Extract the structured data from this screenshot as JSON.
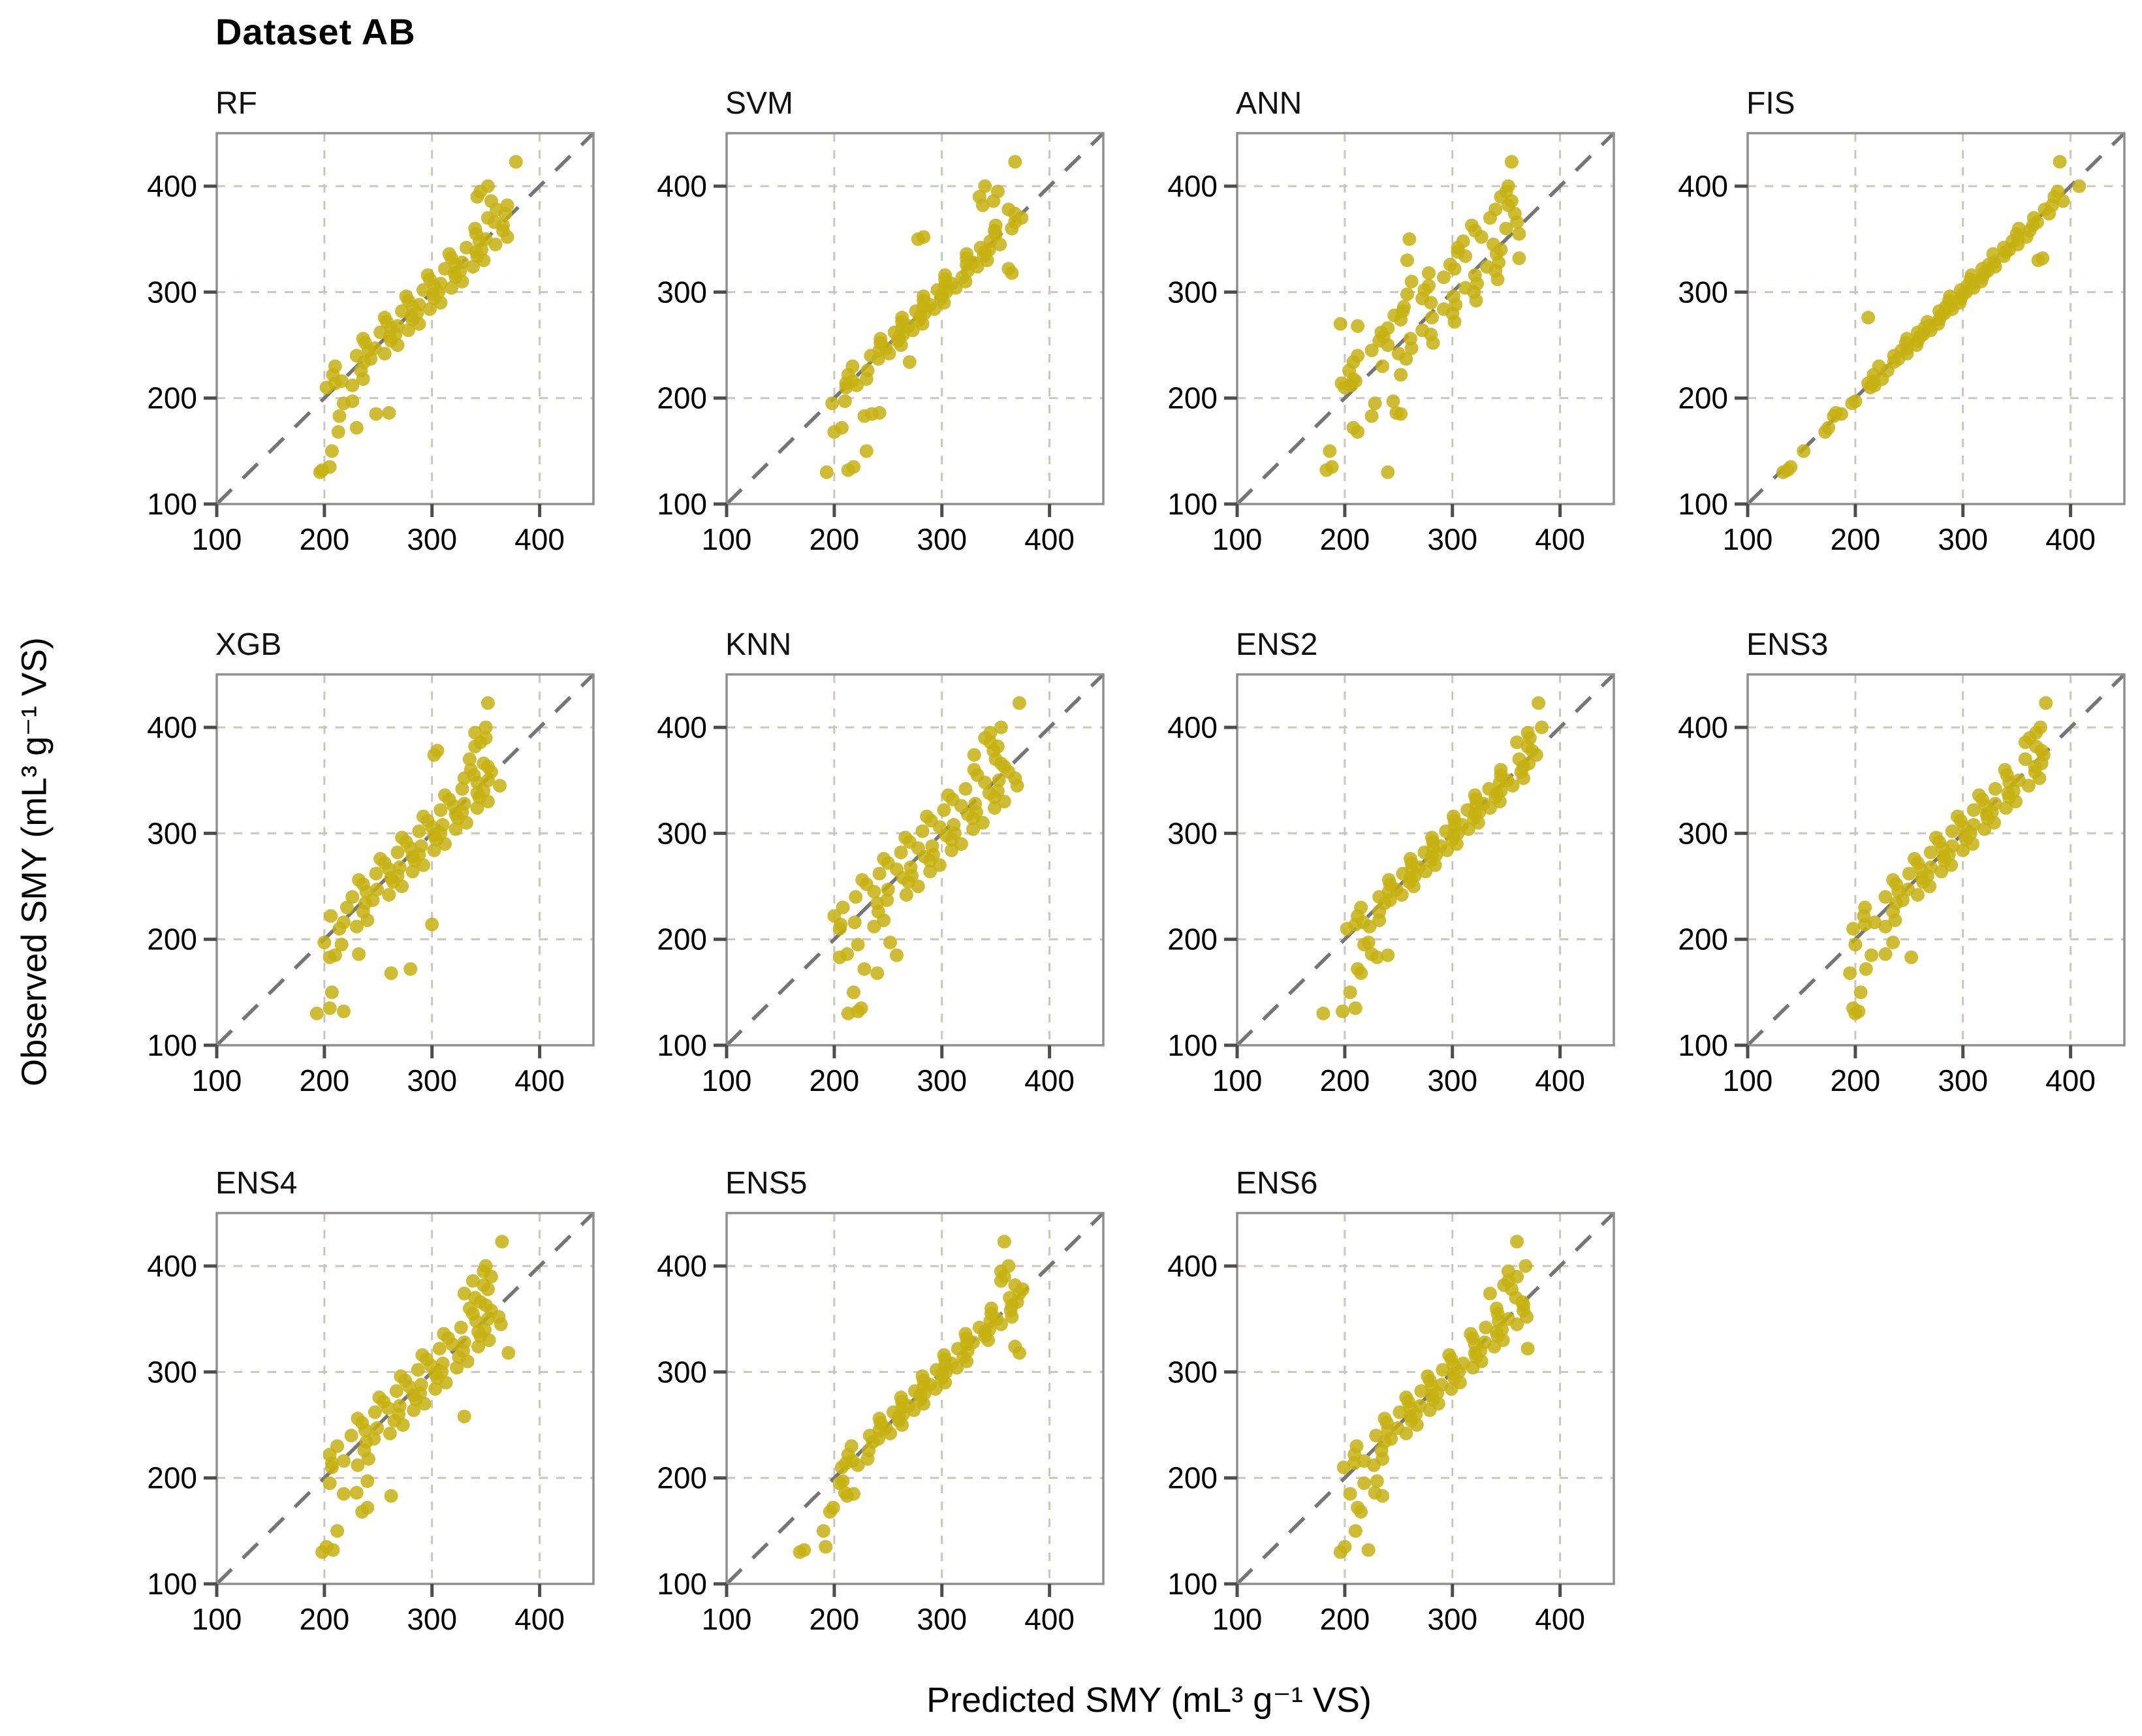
{
  "figure": {
    "title": "Dataset AB",
    "x_axis_title": "Predicted SMY (mL³ g⁻¹ VS)",
    "y_axis_title": "Observed SMY (mL³ g⁻¹ VS)"
  },
  "chart_data": {
    "type": "scatter",
    "title": "Dataset AB",
    "xlabel": "Predicted SMY (mL³ g⁻¹ VS)",
    "ylabel": "Observed SMY (mL³ g⁻¹ VS)",
    "axis_range": [
      100,
      450
    ],
    "ticks": [
      100,
      200,
      300,
      400
    ],
    "gridlines": [
      200,
      300,
      400
    ],
    "grid": true,
    "identity_line": true,
    "legend": "none",
    "point_color": "#c5b211",
    "grid_color": "#ccc5bf",
    "identity_color": "#757575",
    "border_color": "#8f8f8f",
    "observed": [
      130,
      132,
      135,
      150,
      168,
      172,
      183,
      185,
      186,
      195,
      197,
      210,
      212,
      214,
      216,
      218,
      222,
      226,
      230,
      234,
      237,
      240,
      242,
      245,
      247,
      250,
      252,
      254,
      256,
      258,
      260,
      262,
      264,
      266,
      268,
      270,
      272,
      274,
      276,
      278,
      280,
      282,
      284,
      286,
      288,
      290,
      292,
      294,
      296,
      298,
      300,
      302,
      304,
      306,
      308,
      310,
      312,
      314,
      316,
      318,
      320,
      322,
      324,
      326,
      328,
      330,
      332,
      334,
      336,
      338,
      340,
      342,
      345,
      348,
      350,
      352,
      355,
      358,
      360,
      363,
      366,
      370,
      374,
      378,
      382,
      386,
      390,
      395,
      400,
      423
    ],
    "panels": [
      {
        "title": "RF",
        "predicted": [
          196,
          198,
          205,
          207,
          213,
          230,
          214,
          248,
          260,
          218,
          226,
          202,
          226,
          210,
          216,
          236,
          208,
          234,
          210,
          237,
          243,
          230,
          256,
          241,
          247,
          268,
          238,
          262,
          236,
          261,
          266,
          252,
          278,
          262,
          268,
          288,
          258,
          282,
          256,
          281,
          286,
          272,
          298,
          282,
          288,
          308,
          278,
          302,
          276,
          301,
          306,
          292,
          318,
          302,
          308,
          328,
          298,
          322,
          296,
          321,
          326,
          312,
          338,
          322,
          328,
          348,
          318,
          342,
          316,
          341,
          346,
          332,
          359,
          344,
          350,
          370,
          341,
          366,
          340,
          366,
          358,
          352,
          368,
          360,
          370,
          355,
          342,
          345,
          352,
          378
        ]
      },
      {
        "title": "SVM",
        "predicted": [
          193,
          213,
          218,
          230,
          200,
          207,
          228,
          235,
          242,
          198,
          210,
          211,
          221,
          211,
          217,
          230,
          213,
          231,
          217,
          270,
          241,
          234,
          251,
          242,
          248,
          262,
          243,
          259,
          243,
          260,
          264,
          256,
          273,
          263,
          269,
          282,
          263,
          279,
          263,
          280,
          284,
          276,
          293,
          283,
          289,
          302,
          283,
          299,
          283,
          300,
          304,
          296,
          313,
          303,
          309,
          322,
          303,
          319,
          303,
          365,
          324,
          362,
          333,
          323,
          329,
          342,
          323,
          339,
          323,
          340,
          344,
          336,
          354,
          345,
          278,
          283,
          350,
          349,
          365,
          350,
          368,
          374,
          368,
          362,
          338,
          348,
          335,
          352,
          340,
          368
        ]
      },
      {
        "title": "ANN",
        "predicted": [
          240,
          183,
          188,
          186,
          212,
          208,
          225,
          252,
          248,
          228,
          245,
          200,
          206,
          197,
          210,
          208,
          252,
          204,
          235,
          208,
          257,
          212,
          250,
          225,
          262,
          240,
          282,
          232,
          261,
          236,
          280,
          234,
          272,
          240,
          212,
          196,
          302,
          252,
          281,
          246,
          300,
          254,
          292,
          255,
          303,
          280,
          322,
          272,
          301,
          258,
          320,
          274,
          312,
          278,
          323,
          262,
          342,
          292,
          321,
          278,
          340,
          302,
          332,
          298,
          343,
          258,
          362,
          312,
          341,
          305,
          345,
          305,
          338,
          310,
          260,
          327,
          362,
          321,
          350,
          318,
          360,
          335,
          358,
          340,
          352,
          355,
          345,
          350,
          352,
          355
        ]
      },
      {
        "title": "FIS",
        "predicted": [
          133,
          137,
          140,
          152,
          172,
          175,
          180,
          187,
          182,
          197,
          200,
          214,
          218,
          212,
          217,
          225,
          217,
          230,
          222,
          236,
          240,
          236,
          248,
          243,
          248,
          257,
          247,
          258,
          248,
          260,
          263,
          258,
          270,
          264,
          269,
          277,
          267,
          278,
          212,
          280,
          283,
          278,
          290,
          284,
          289,
          297,
          287,
          298,
          288,
          300,
          303,
          298,
          310,
          304,
          309,
          317,
          307,
          318,
          308,
          320,
          323,
          318,
          330,
          324,
          329,
          370,
          374,
          338,
          328,
          340,
          343,
          338,
          351,
          346,
          351,
          359,
          350,
          362,
          352,
          365,
          369,
          366,
          380,
          376,
          383,
          393,
          385,
          388,
          408,
          390
        ]
      },
      {
        "title": "XGB",
        "predicted": [
          193,
          218,
          205,
          207,
          262,
          280,
          205,
          210,
          232,
          216,
          200,
          214,
          230,
          300,
          218,
          240,
          206,
          236,
          221,
          238,
          245,
          226,
          260,
          239,
          249,
          272,
          236,
          264,
          232,
          262,
          268,
          248,
          282,
          260,
          270,
          292,
          256,
          284,
          252,
          282,
          288,
          268,
          302,
          280,
          290,
          312,
          276,
          304,
          272,
          302,
          308,
          288,
          322,
          300,
          310,
          332,
          296,
          324,
          292,
          322,
          328,
          308,
          342,
          320,
          330,
          352,
          316,
          344,
          312,
          342,
          348,
          328,
          363,
          342,
          352,
          330,
          339,
          355,
          336,
          352,
          348,
          335,
          302,
          305,
          340,
          345,
          350,
          340,
          350,
          352
        ]
      },
      {
        "title": "KNN",
        "predicted": [
          213,
          222,
          225,
          218,
          240,
          228,
          205,
          258,
          212,
          222,
          252,
          205,
          237,
          206,
          219,
          246,
          200,
          241,
          208,
          240,
          249,
          220,
          267,
          237,
          250,
          278,
          230,
          269,
          226,
          264,
          272,
          242,
          289,
          258,
          271,
          298,
          250,
          289,
          246,
          284,
          292,
          262,
          309,
          278,
          291,
          318,
          270,
          309,
          266,
          304,
          312,
          282,
          329,
          298,
          311,
          338,
          290,
          329,
          286,
          324,
          332,
          302,
          349,
          318,
          331,
          358,
          310,
          349,
          306,
          344,
          352,
          322,
          370,
          340,
          353,
          368,
          333,
          362,
          330,
          358,
          355,
          350,
          330,
          348,
          352,
          345,
          340,
          345,
          355,
          372
        ]
      },
      {
        "title": "ENS2",
        "predicted": [
          180,
          198,
          210,
          205,
          215,
          212,
          230,
          240,
          225,
          218,
          222,
          202,
          223,
          210,
          217,
          232,
          212,
          232,
          215,
          237,
          242,
          232,
          253,
          241,
          248,
          264,
          242,
          260,
          241,
          261,
          265,
          254,
          275,
          262,
          269,
          284,
          262,
          280,
          261,
          281,
          285,
          274,
          295,
          282,
          289,
          304,
          282,
          300,
          281,
          301,
          305,
          294,
          315,
          302,
          309,
          324,
          302,
          320,
          301,
          321,
          325,
          314,
          335,
          322,
          329,
          344,
          322,
          340,
          321,
          341,
          345,
          334,
          356,
          344,
          351,
          366,
          345,
          364,
          345,
          366,
          371,
          362,
          378,
          374,
          370,
          360,
          372,
          370,
          383,
          380
        ]
      },
      {
        "title": "ENS3",
        "predicted": [
          200,
          203,
          198,
          205,
          195,
          210,
          252,
          215,
          228,
          200,
          235,
          198,
          228,
          209,
          218,
          237,
          208,
          235,
          209,
          238,
          244,
          228,
          258,
          240,
          249,
          269,
          238,
          263,
          235,
          262,
          267,
          250,
          280,
          261,
          270,
          289,
          258,
          283,
          255,
          282,
          287,
          270,
          300,
          281,
          290,
          309,
          278,
          303,
          275,
          302,
          307,
          290,
          320,
          301,
          310,
          329,
          298,
          323,
          295,
          322,
          327,
          310,
          340,
          321,
          330,
          349,
          318,
          343,
          315,
          342,
          347,
          330,
          361,
          343,
          352,
          371,
          341,
          367,
          339,
          367,
          373,
          358,
          375,
          373,
          368,
          358,
          362,
          368,
          372,
          377
        ]
      },
      {
        "title": "ENS4",
        "predicted": [
          198,
          208,
          202,
          212,
          235,
          240,
          262,
          218,
          230,
          205,
          240,
          207,
          231,
          207,
          218,
          241,
          205,
          237,
          212,
          239,
          246,
          225,
          261,
          238,
          249,
          273,
          235,
          265,
          231,
          330,
          269,
          247,
          283,
          259,
          270,
          293,
          255,
          285,
          251,
          283,
          289,
          267,
          303,
          279,
          290,
          313,
          275,
          305,
          271,
          303,
          309,
          287,
          323,
          299,
          310,
          333,
          295,
          325,
          291,
          371,
          329,
          307,
          343,
          319,
          330,
          353,
          315,
          345,
          311,
          343,
          349,
          327,
          364,
          341,
          352,
          362,
          338,
          355,
          335,
          350,
          345,
          340,
          330,
          352,
          348,
          338,
          355,
          348,
          350,
          365
        ]
      },
      {
        "title": "ENS5",
        "predicted": [
          168,
          172,
          192,
          190,
          196,
          199,
          212,
          218,
          210,
          205,
          208,
          207,
          222,
          211,
          217,
          231,
          213,
          232,
          216,
          236,
          241,
          233,
          252,
          242,
          248,
          263,
          243,
          260,
          242,
          260,
          264,
          255,
          274,
          263,
          269,
          283,
          263,
          280,
          262,
          280,
          284,
          275,
          294,
          283,
          289,
          303,
          283,
          300,
          282,
          300,
          304,
          295,
          314,
          303,
          309,
          323,
          303,
          320,
          302,
          372,
          324,
          315,
          368,
          323,
          329,
          343,
          323,
          340,
          322,
          340,
          344,
          335,
          355,
          345,
          351,
          365,
          346,
          364,
          346,
          365,
          370,
          363,
          372,
          375,
          368,
          355,
          358,
          355,
          362,
          358
        ]
      },
      {
        "title": "ENS6",
        "predicted": [
          196,
          222,
          200,
          210,
          215,
          212,
          235,
          205,
          228,
          218,
          230,
          199,
          227,
          209,
          218,
          235,
          209,
          234,
          211,
          237,
          243,
          229,
          257,
          240,
          249,
          267,
          239,
          262,
          237,
          261,
          266,
          251,
          279,
          261,
          270,
          287,
          259,
          282,
          257,
          281,
          286,
          271,
          299,
          281,
          290,
          307,
          279,
          302,
          277,
          301,
          306,
          291,
          319,
          301,
          310,
          327,
          299,
          322,
          297,
          321,
          326,
          370,
          339,
          321,
          330,
          347,
          319,
          342,
          317,
          341,
          346,
          331,
          360,
          343,
          352,
          369,
          342,
          366,
          341,
          366,
          365,
          359,
          335,
          355,
          348,
          352,
          360,
          352,
          368,
          360
        ]
      }
    ]
  }
}
